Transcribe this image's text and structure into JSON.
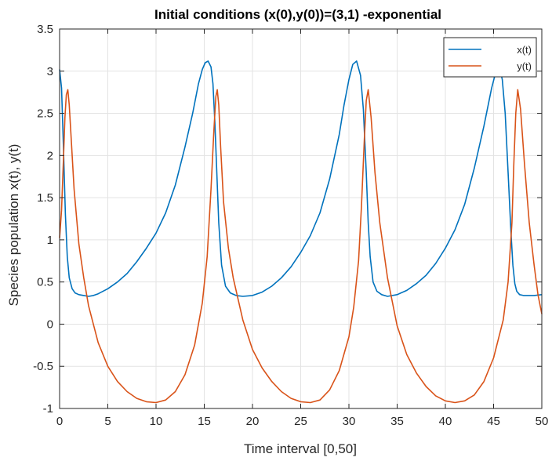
{
  "chart_data": {
    "type": "line",
    "title": "Initial conditions (x(0),y(0))=(3,1) -exponential",
    "xlabel": "Time interval [0,50]",
    "ylabel": "Species population x(t), y(t)",
    "xlim": [
      0,
      50
    ],
    "ylim": [
      -1,
      3.5
    ],
    "xticks": [
      0,
      5,
      10,
      15,
      20,
      25,
      30,
      35,
      40,
      45,
      50
    ],
    "yticks": [
      -1,
      -0.5,
      0,
      0.5,
      1,
      1.5,
      2,
      2.5,
      3,
      3.5
    ],
    "grid": true,
    "legend_position": "top-right",
    "series": [
      {
        "name": "x(t)",
        "color": "#0072BD",
        "x": [
          0,
          0.2,
          0.4,
          0.6,
          0.8,
          1.0,
          1.3,
          1.6,
          2.0,
          2.5,
          3.0,
          3.5,
          4.0,
          5.0,
          6.0,
          7.0,
          8.0,
          9.0,
          10.0,
          11.0,
          12.0,
          13.0,
          13.8,
          14.4,
          14.8,
          15.1,
          15.4,
          15.7,
          15.9,
          16.1,
          16.3,
          16.5,
          16.8,
          17.2,
          17.7,
          18.3,
          19,
          20,
          21,
          22,
          23,
          24,
          25,
          26,
          27,
          28,
          29,
          29.5,
          30.0,
          30.4,
          30.8,
          31.2,
          31.5,
          31.8,
          32.0,
          32.2,
          32.5,
          32.9,
          33.4,
          34,
          35,
          36,
          37,
          38,
          39,
          40,
          41,
          42,
          43,
          44,
          44.8,
          45.3,
          45.6,
          45.9,
          46.2,
          46.5,
          46.8,
          47.0,
          47.2,
          47.4,
          47.7,
          48.1,
          48.6,
          49.2,
          50
        ],
        "y": [
          3.02,
          2.8,
          2.1,
          1.3,
          0.8,
          0.55,
          0.42,
          0.37,
          0.35,
          0.34,
          0.33,
          0.34,
          0.36,
          0.42,
          0.5,
          0.6,
          0.74,
          0.9,
          1.08,
          1.32,
          1.65,
          2.1,
          2.5,
          2.85,
          3.02,
          3.1,
          3.12,
          3.05,
          2.85,
          2.4,
          1.8,
          1.2,
          0.7,
          0.45,
          0.37,
          0.34,
          0.33,
          0.34,
          0.38,
          0.45,
          0.55,
          0.68,
          0.85,
          1.05,
          1.32,
          1.72,
          2.25,
          2.6,
          2.9,
          3.08,
          3.12,
          2.95,
          2.55,
          1.8,
          1.2,
          0.8,
          0.5,
          0.39,
          0.35,
          0.33,
          0.35,
          0.4,
          0.48,
          0.58,
          0.72,
          0.9,
          1.12,
          1.42,
          1.85,
          2.35,
          2.8,
          3.02,
          3.05,
          2.9,
          2.5,
          1.8,
          1.1,
          0.7,
          0.48,
          0.39,
          0.35,
          0.34,
          0.34,
          0.34,
          0.35
        ]
      },
      {
        "name": "y(t)",
        "color": "#D95319",
        "x": [
          0,
          0.2,
          0.4,
          0.55,
          0.7,
          0.85,
          1.0,
          1.2,
          1.5,
          2.0,
          2.5,
          3.0,
          4.0,
          5.0,
          6.0,
          7.0,
          8.0,
          9.0,
          10.0,
          11.0,
          12.0,
          13.0,
          14.0,
          14.8,
          15.3,
          15.7,
          16.0,
          16.2,
          16.35,
          16.5,
          16.7,
          17.0,
          17.5,
          18.0,
          19,
          20,
          21,
          22,
          23,
          24,
          25,
          26,
          27,
          28,
          29,
          30,
          30.5,
          31.0,
          31.3,
          31.6,
          31.8,
          32.0,
          32.3,
          32.7,
          33.2,
          34,
          35,
          36,
          37,
          38,
          39,
          40,
          41,
          42,
          43,
          44,
          45,
          46,
          46.5,
          46.9,
          47.1,
          47.3,
          47.5,
          47.8,
          48.2,
          48.7,
          49.2,
          49.6,
          50
        ],
        "y": [
          1.02,
          1.35,
          1.95,
          2.45,
          2.72,
          2.78,
          2.6,
          2.2,
          1.6,
          0.95,
          0.55,
          0.22,
          -0.22,
          -0.5,
          -0.68,
          -0.8,
          -0.88,
          -0.92,
          -0.93,
          -0.9,
          -0.8,
          -0.6,
          -0.25,
          0.25,
          0.8,
          1.6,
          2.3,
          2.7,
          2.78,
          2.6,
          2.1,
          1.45,
          0.9,
          0.55,
          0.05,
          -0.3,
          -0.52,
          -0.68,
          -0.8,
          -0.88,
          -0.92,
          -0.93,
          -0.9,
          -0.78,
          -0.55,
          -0.15,
          0.2,
          0.75,
          1.4,
          2.2,
          2.65,
          2.78,
          2.45,
          1.8,
          1.2,
          0.55,
          -0.02,
          -0.36,
          -0.58,
          -0.74,
          -0.85,
          -0.91,
          -0.93,
          -0.91,
          -0.84,
          -0.68,
          -0.4,
          0.05,
          0.5,
          1.2,
          1.9,
          2.5,
          2.78,
          2.55,
          1.9,
          1.2,
          0.7,
          0.35,
          0.12
        ]
      }
    ]
  }
}
